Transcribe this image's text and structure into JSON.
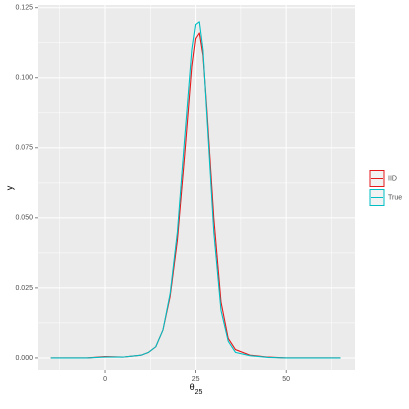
{
  "chart_data": {
    "type": "line",
    "x_label": "θ",
    "x_label_subscript": "25",
    "y_label": "y",
    "x": [
      -15,
      -10,
      -5,
      0,
      5,
      10,
      12,
      14,
      16,
      18,
      20,
      22,
      24,
      25,
      26,
      27,
      28,
      30,
      32,
      34,
      36,
      40,
      45,
      50,
      55,
      60,
      65
    ],
    "series": [
      {
        "name": "IID",
        "color": "#E41A1C",
        "values": [
          0,
          0,
          0,
          0.0005,
          0.0003,
          0.001,
          0.002,
          0.004,
          0.01,
          0.022,
          0.042,
          0.072,
          0.104,
          0.114,
          0.116,
          0.108,
          0.09,
          0.05,
          0.02,
          0.007,
          0.003,
          0.001,
          0.0003,
          0,
          0,
          0,
          0
        ]
      },
      {
        "name": "True",
        "color": "#00BFC4",
        "values": [
          0,
          0,
          0,
          0.0003,
          0.0003,
          0.001,
          0.002,
          0.004,
          0.01,
          0.023,
          0.045,
          0.078,
          0.11,
          0.119,
          0.12,
          0.11,
          0.088,
          0.045,
          0.017,
          0.006,
          0.002,
          0.0008,
          0.0002,
          0,
          0,
          0,
          0
        ]
      }
    ],
    "xlim": [
      -18.5,
      69
    ],
    "ylim": [
      -0.0043,
      0.126
    ],
    "xticks": [
      0,
      25,
      50
    ],
    "yticks": [
      {
        "value": 0,
        "label": "0.000"
      },
      {
        "value": 0.025,
        "label": "0.025"
      },
      {
        "value": 0.05,
        "label": "0.050"
      },
      {
        "value": 0.075,
        "label": "0.075"
      },
      {
        "value": 0.1,
        "label": "0.100"
      },
      {
        "value": 0.125,
        "label": "0.125"
      }
    ],
    "xminor": [
      -12.5,
      12.5,
      37.5,
      62.5
    ],
    "yminor": [
      0.0125,
      0.0375,
      0.0625,
      0.0875,
      0.1125
    ],
    "grid": true,
    "legend": "right"
  }
}
